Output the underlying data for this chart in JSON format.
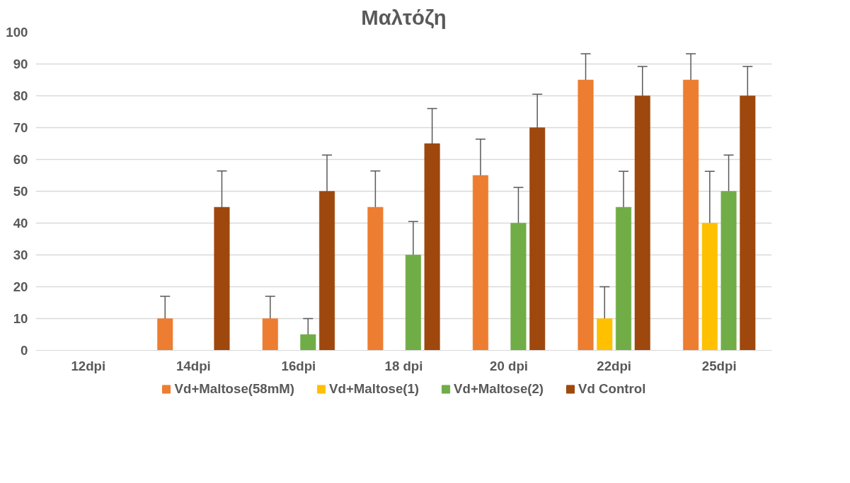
{
  "chart_data": {
    "type": "bar",
    "title": "Μαλτόζη",
    "categories": [
      "12dpi",
      "14dpi",
      "16dpi",
      "18 dpi",
      "20 dpi",
      "22dpi",
      "25dpi"
    ],
    "series": [
      {
        "name": "Vd+Maltose(58mM)",
        "color": "#ed7d31",
        "values": [
          0,
          10,
          10,
          45,
          55,
          85,
          85
        ],
        "errors": [
          null,
          7,
          7,
          11.4,
          11.4,
          8.2,
          8.2
        ]
      },
      {
        "name": "Vd+Maltose(1)",
        "color": "#ffc000",
        "values": [
          0,
          0,
          0,
          0,
          0,
          10,
          40
        ],
        "errors": [
          null,
          null,
          null,
          null,
          null,
          10,
          16.3
        ]
      },
      {
        "name": "Vd+Maltose(2)",
        "color": "#70ad47",
        "values": [
          0,
          0,
          5,
          30,
          40,
          45,
          50
        ],
        "errors": [
          null,
          null,
          5,
          10.5,
          11.2,
          11.3,
          11.4
        ]
      },
      {
        "name": "Vd Control",
        "color": "#9e480e",
        "values": [
          0,
          45,
          50,
          65,
          70,
          80,
          80
        ],
        "errors": [
          null,
          11.4,
          11.4,
          11,
          10.5,
          9.2,
          9.2
        ]
      }
    ],
    "ylim": [
      0,
      100
    ],
    "yticks": [
      0,
      10,
      20,
      30,
      40,
      50,
      60,
      70,
      80,
      90,
      100
    ],
    "grid": "y",
    "legend": "bottom"
  }
}
